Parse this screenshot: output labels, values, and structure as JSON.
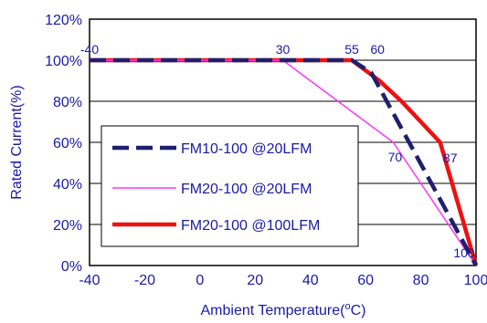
{
  "chart_data": {
    "type": "line",
    "xlabel": "Ambient Temperature(",
    "xlabel_sup": "o",
    "xlabel_tail": "C)",
    "ylabel": "Rated Current(%)",
    "xlim": [
      -40,
      100
    ],
    "ylim": [
      0,
      120
    ],
    "x_ticks": [
      "-40",
      "-20",
      "0",
      "20",
      "40",
      "60",
      "80",
      "100"
    ],
    "y_ticks": [
      "0%",
      "20%",
      "40%",
      "60%",
      "80%",
      "100%",
      "120%"
    ],
    "grid": true,
    "legend_position": "bottom-left",
    "series": [
      {
        "name": "FM10-100 @20LFM",
        "color": "#1f1f6e",
        "style": "dashed",
        "points": [
          [
            -40,
            100
          ],
          [
            55,
            100
          ],
          [
            62,
            94
          ],
          [
            100,
            0
          ]
        ]
      },
      {
        "name": "FM20-100 @20LFM",
        "color": "#ff33ff",
        "style": "thin",
        "points": [
          [
            -40,
            100
          ],
          [
            30,
            100
          ],
          [
            70,
            60
          ],
          [
            100,
            0
          ]
        ]
      },
      {
        "name": "FM20-100 @100LFM",
        "color": "#ee1111",
        "style": "thick",
        "points": [
          [
            -40,
            100
          ],
          [
            55,
            100
          ],
          [
            65,
            90
          ],
          [
            73,
            80
          ],
          [
            80,
            70
          ],
          [
            87,
            60
          ],
          [
            100,
            0
          ]
        ]
      }
    ],
    "annotations": [
      {
        "text": "-40",
        "x": -40,
        "y": 100
      },
      {
        "text": "30",
        "x": 30,
        "y": 100
      },
      {
        "text": "55",
        "x": 55,
        "y": 100
      },
      {
        "text": "60",
        "x": 60,
        "y": 100
      },
      {
        "text": "70",
        "x": 70,
        "y": 60
      },
      {
        "text": "87",
        "x": 87,
        "y": 60
      },
      {
        "text": "100",
        "x": 100,
        "y": 0
      }
    ]
  }
}
